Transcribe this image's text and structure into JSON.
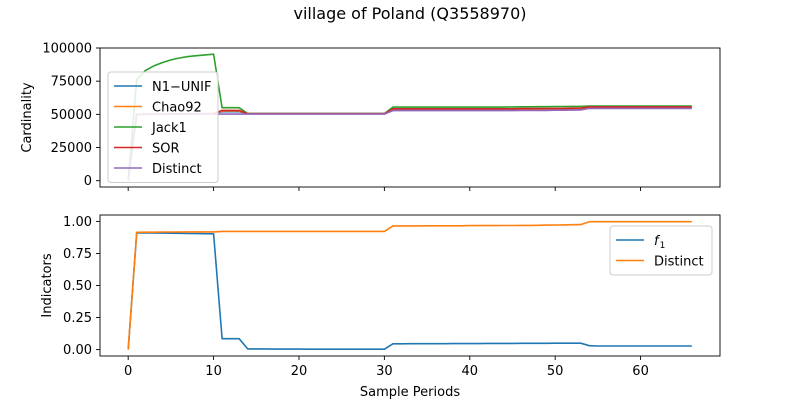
{
  "chart_data": {
    "title": "village of Poland (Q3558970)",
    "xlabel": "Sample Periods",
    "xlim": [
      -3.3,
      69.3
    ],
    "xticks": [
      0,
      10,
      20,
      30,
      40,
      50,
      60
    ],
    "x": [
      0,
      1,
      2,
      3,
      4,
      5,
      6,
      7,
      8,
      9,
      10,
      11,
      12,
      13,
      14,
      15,
      16,
      17,
      18,
      19,
      20,
      21,
      22,
      23,
      24,
      25,
      26,
      27,
      28,
      29,
      30,
      31,
      32,
      33,
      34,
      35,
      36,
      37,
      38,
      39,
      40,
      41,
      42,
      43,
      44,
      45,
      46,
      47,
      48,
      49,
      50,
      51,
      52,
      53,
      54,
      55,
      56,
      57,
      58,
      59,
      60,
      61,
      62,
      63,
      64,
      65,
      66
    ],
    "panels": [
      {
        "type": "line",
        "ylabel": "Cardinality",
        "ylim": [
          -4750,
          100000
        ],
        "yticks": [
          "0",
          "25000",
          "50000",
          "75000",
          "100000"
        ],
        "ytick_values": [
          0,
          25000,
          50000,
          75000,
          100000
        ],
        "legend_position": "upper-left",
        "series": [
          {
            "name": "N1−UNIF",
            "color": "#1f77b4",
            "values": [
              0,
              50000,
              50100,
              50200,
              50300,
              50300,
              50400,
              50400,
              50400,
              50500,
              50500,
              52000,
              52000,
              52000,
              50500,
              50500,
              50500,
              50500,
              50500,
              50500,
              50500,
              50500,
              50500,
              50500,
              50500,
              50500,
              50500,
              50500,
              50500,
              50500,
              50500,
              53500,
              53500,
              53500,
              53500,
              53500,
              53500,
              53500,
              53500,
              53500,
              53500,
              53500,
              53500,
              53500,
              53500,
              53500,
              53600,
              53600,
              53700,
              53700,
              53800,
              53800,
              53900,
              54000,
              55000,
              55000,
              55000,
              55000,
              55000,
              55000,
              55000,
              55000,
              55000,
              55000,
              55000,
              55000,
              55000
            ]
          },
          {
            "name": "Chao92",
            "color": "#ff7f0e",
            "values": [
              0,
              50000,
              50100,
              50200,
              50300,
              50300,
              50400,
              50400,
              50400,
              50500,
              50500,
              52500,
              52500,
              52500,
              50500,
              50500,
              50500,
              50500,
              50500,
              50500,
              50500,
              50500,
              50500,
              50500,
              50500,
              50500,
              50500,
              50500,
              50500,
              50500,
              50500,
              54000,
              54000,
              54000,
              54000,
              54000,
              54000,
              54000,
              54000,
              54000,
              54000,
              54000,
              54000,
              54000,
              54000,
              54000,
              54100,
              54100,
              54200,
              54200,
              54300,
              54300,
              54400,
              54500,
              55500,
              55500,
              55500,
              55500,
              55500,
              55500,
              55500,
              55500,
              55500,
              55500,
              55500,
              55500,
              55500
            ]
          },
          {
            "name": "Jack1",
            "color": "#2ca02c",
            "values": [
              0,
              76000,
              83000,
              86500,
              89000,
              91000,
              92500,
              93500,
              94200,
              94800,
              95300,
              55000,
              55000,
              55000,
              50600,
              50600,
              50600,
              50600,
              50600,
              50600,
              50600,
              50600,
              50600,
              50600,
              50600,
              50600,
              50600,
              50600,
              50600,
              50600,
              50600,
              55500,
              55500,
              55500,
              55500,
              55500,
              55500,
              55500,
              55500,
              55500,
              55500,
              55500,
              55500,
              55500,
              55500,
              55600,
              55700,
              55700,
              55800,
              55800,
              55900,
              55900,
              56000,
              56000,
              56200,
              56200,
              56200,
              56200,
              56200,
              56200,
              56200,
              56200,
              56200,
              56200,
              56200,
              56200,
              56200
            ]
          },
          {
            "name": "SOR",
            "color": "#d62728",
            "values": [
              0,
              50000,
              50100,
              50200,
              50300,
              50300,
              50400,
              50400,
              50400,
              50500,
              50500,
              53000,
              53000,
              53000,
              50500,
              50500,
              50500,
              50500,
              50500,
              50500,
              50500,
              50500,
              50500,
              50500,
              50500,
              50500,
              50500,
              50500,
              50500,
              50500,
              50500,
              54200,
              54200,
              54200,
              54200,
              54200,
              54200,
              54200,
              54200,
              54200,
              54200,
              54200,
              54200,
              54200,
              54200,
              54200,
              54300,
              54300,
              54400,
              54400,
              54500,
              54500,
              54600,
              54700,
              55600,
              55600,
              55600,
              55600,
              55600,
              55600,
              55600,
              55600,
              55600,
              55600,
              55600,
              55600,
              55600
            ]
          },
          {
            "name": "Distinct",
            "color": "#9467bd",
            "values": [
              0,
              49800,
              49900,
              50000,
              50000,
              50100,
              50100,
              50100,
              50200,
              50200,
              50200,
              50200,
              50200,
              50200,
              50200,
              50200,
              50200,
              50200,
              50200,
              50200,
              50200,
              50200,
              50200,
              50200,
              50200,
              50200,
              50200,
              50200,
              50200,
              50200,
              50200,
              52800,
              52800,
              52800,
              52800,
              52800,
              52800,
              52800,
              52800,
              52800,
              52800,
              52800,
              52800,
              52800,
              52800,
              52800,
              52900,
              52900,
              53000,
              53000,
              53100,
              53100,
              53200,
              53300,
              54500,
              54500,
              54500,
              54500,
              54500,
              54500,
              54500,
              54500,
              54500,
              54500,
              54500,
              54500,
              54500
            ]
          }
        ]
      },
      {
        "type": "line",
        "ylabel": "Indicators",
        "ylim": [
          -0.05,
          1.05
        ],
        "yticks": [
          "0.00",
          "0.25",
          "0.50",
          "0.75",
          "1.00"
        ],
        "ytick_values": [
          0,
          0.25,
          0.5,
          0.75,
          1.0
        ],
        "legend_position": "upper-right",
        "series": [
          {
            "name": "f1",
            "color": "#1f77b4",
            "values": [
              0,
              0.91,
              0.91,
              0.91,
              0.909,
              0.908,
              0.907,
              0.906,
              0.905,
              0.904,
              0.903,
              0.085,
              0.085,
              0.085,
              0.005,
              0.005,
              0.005,
              0.004,
              0.004,
              0.004,
              0.004,
              0.003,
              0.003,
              0.003,
              0.003,
              0.003,
              0.003,
              0.003,
              0.003,
              0.003,
              0.003,
              0.045,
              0.045,
              0.046,
              0.046,
              0.046,
              0.046,
              0.046,
              0.047,
              0.047,
              0.047,
              0.047,
              0.048,
              0.048,
              0.048,
              0.048,
              0.049,
              0.049,
              0.049,
              0.049,
              0.05,
              0.05,
              0.05,
              0.05,
              0.03,
              0.028,
              0.028,
              0.028,
              0.028,
              0.028,
              0.028,
              0.028,
              0.028,
              0.028,
              0.028,
              0.028,
              0.028
            ]
          },
          {
            "name": "Distinct",
            "color": "#ff7f0e",
            "values": [
              0,
              0.915,
              0.916,
              0.916,
              0.917,
              0.917,
              0.917,
              0.918,
              0.918,
              0.918,
              0.918,
              0.922,
              0.922,
              0.922,
              0.922,
              0.922,
              0.922,
              0.922,
              0.922,
              0.922,
              0.922,
              0.922,
              0.922,
              0.922,
              0.922,
              0.922,
              0.922,
              0.922,
              0.922,
              0.922,
              0.922,
              0.965,
              0.965,
              0.965,
              0.965,
              0.966,
              0.966,
              0.966,
              0.966,
              0.966,
              0.967,
              0.967,
              0.967,
              0.967,
              0.968,
              0.968,
              0.969,
              0.969,
              0.97,
              0.971,
              0.972,
              0.973,
              0.974,
              0.975,
              0.998,
              0.998,
              0.998,
              0.998,
              0.998,
              0.998,
              0.998,
              0.998,
              0.998,
              0.998,
              0.998,
              0.998,
              0.998
            ]
          }
        ]
      }
    ]
  }
}
